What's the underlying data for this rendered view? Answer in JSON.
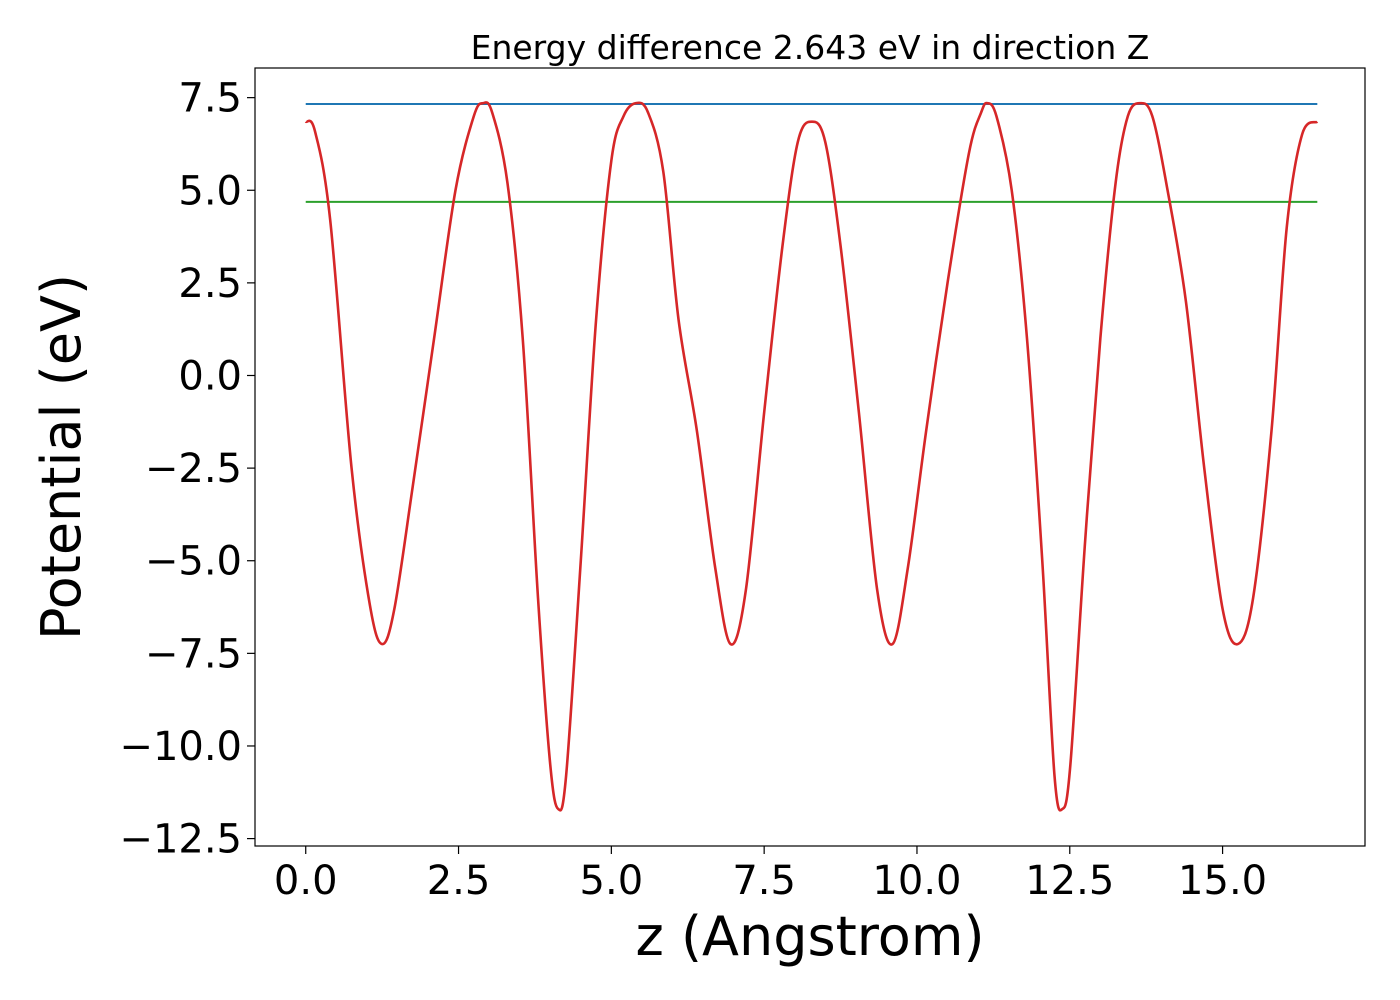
{
  "chart_data": {
    "type": "line",
    "title": "Energy difference 2.643 eV in direction Z",
    "xlabel": "z (Angstrom)",
    "ylabel": "Potential (eV)",
    "xlim": [
      -0.83,
      17.33
    ],
    "ylim": [
      -12.7,
      8.3
    ],
    "xticks": [
      0.0,
      2.5,
      5.0,
      7.5,
      10.0,
      12.5,
      15.0
    ],
    "xtick_labels": [
      "0.0",
      "2.5",
      "5.0",
      "7.5",
      "10.0",
      "12.5",
      "15.0"
    ],
    "yticks": [
      7.5,
      5.0,
      2.5,
      0.0,
      -2.5,
      -5.0,
      -7.5,
      -10.0,
      -12.5
    ],
    "ytick_labels": [
      "7.5",
      "5.0",
      "2.5",
      "0.0",
      "−2.5",
      "−5.0",
      "−7.5",
      "−10.0",
      "−12.5"
    ],
    "grid": false,
    "series": [
      {
        "color": "#d62728",
        "style": "curve",
        "x": [
          0.0,
          0.15,
          0.4,
          0.75,
          1.05,
          1.25,
          1.45,
          1.75,
          2.1,
          2.45,
          2.75,
          2.9,
          3.05,
          3.3,
          3.55,
          3.8,
          4.0,
          4.13,
          4.26,
          4.5,
          4.75,
          5.0,
          5.2,
          5.4,
          5.6,
          5.85,
          6.1,
          6.4,
          6.7,
          6.95,
          7.2,
          7.5,
          7.8,
          8.05,
          8.28,
          8.5,
          8.75,
          9.05,
          9.35,
          9.6,
          9.85,
          10.15,
          10.5,
          10.85,
          11.05,
          11.15,
          11.3,
          11.55,
          11.8,
          12.05,
          12.25,
          12.38,
          12.51,
          12.75,
          13.0,
          13.25,
          13.45,
          13.65,
          13.85,
          14.1,
          14.4,
          14.7,
          15.0,
          15.25,
          15.5,
          15.8,
          16.05,
          16.3,
          16.55
        ],
        "y": [
          6.85,
          6.6,
          4.2,
          -2.5,
          -6.2,
          -7.25,
          -6.3,
          -3.0,
          1.0,
          5.0,
          7.0,
          7.35,
          7.1,
          5.2,
          1.0,
          -6.0,
          -10.5,
          -11.7,
          -10.8,
          -5.0,
          1.5,
          5.8,
          7.0,
          7.35,
          7.1,
          5.5,
          1.5,
          -1.5,
          -5.2,
          -7.25,
          -5.8,
          -1.0,
          3.5,
          6.3,
          6.85,
          6.3,
          3.5,
          -1.0,
          -5.8,
          -7.25,
          -5.2,
          -1.5,
          2.5,
          6.0,
          7.1,
          7.35,
          7.0,
          5.0,
          1.0,
          -5.0,
          -10.8,
          -11.7,
          -10.5,
          -4.5,
          1.0,
          5.2,
          7.0,
          7.35,
          7.0,
          5.0,
          2.0,
          -2.5,
          -6.3,
          -7.25,
          -6.0,
          -1.5,
          4.0,
          6.5,
          6.85
        ]
      },
      {
        "color": "#1f77b4",
        "style": "line",
        "x": [
          0.0,
          16.55
        ],
        "y": [
          7.33,
          7.33
        ]
      },
      {
        "color": "#2ca02c",
        "style": "line",
        "x": [
          0.0,
          16.55
        ],
        "y": [
          4.687,
          4.687
        ]
      }
    ]
  }
}
